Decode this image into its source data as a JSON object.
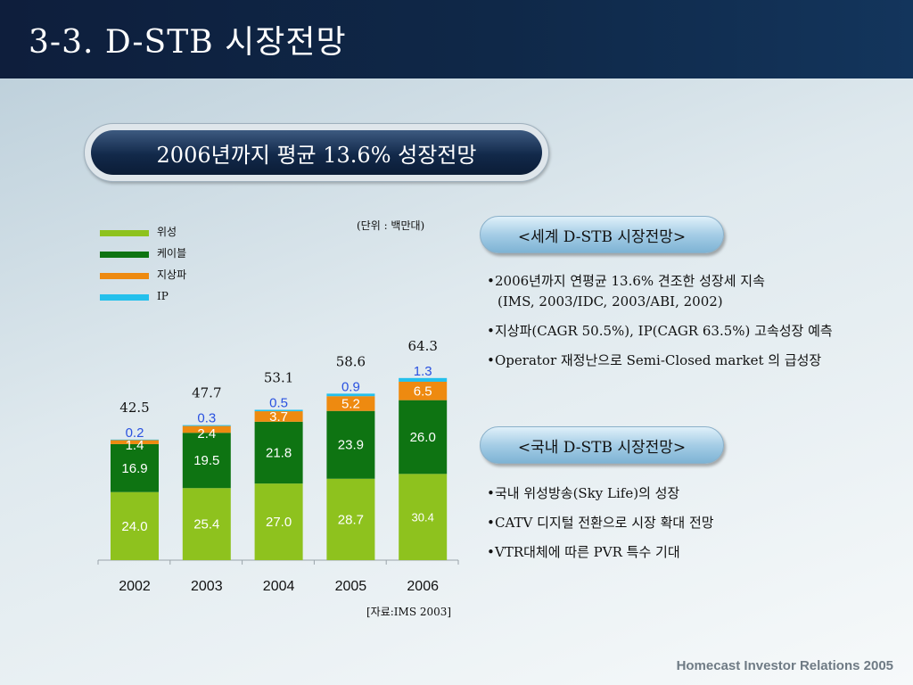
{
  "page_title": "3-3. D-STB 시장전망",
  "headline": "2006년까지 평균 13.6% 성장전망",
  "chart_data": {
    "type": "bar",
    "stacked": true,
    "unit_note": "(단위 : 백만대)",
    "source_note": "[자료:IMS 2003]",
    "categories": [
      "2002",
      "2003",
      "2004",
      "2005",
      "2006"
    ],
    "totals": [
      "42.5",
      "47.7",
      "53.1",
      "58.6",
      "64.3"
    ],
    "series": [
      {
        "name": "위성",
        "color": "#8ec21e",
        "label_color": "#ffffff",
        "values": [
          24.0,
          25.4,
          27.0,
          28.7,
          30.4
        ],
        "labels": [
          "24.0",
          "25.4",
          "27.0",
          "28.7",
          "30.4"
        ]
      },
      {
        "name": "케이블",
        "color": "#0e7412",
        "label_color": "#ffffff",
        "values": [
          16.9,
          19.5,
          21.8,
          23.9,
          26.0
        ],
        "labels": [
          "16.9",
          "19.5",
          "21.8",
          "23.9",
          "26.0"
        ]
      },
      {
        "name": "지상파",
        "color": "#ee8a10",
        "label_color": "#ffffff",
        "values": [
          1.4,
          2.4,
          3.7,
          5.2,
          6.5
        ],
        "labels": [
          "1.4",
          "2.4",
          "3.7",
          "5.2",
          "6.5"
        ]
      },
      {
        "name": "IP",
        "color": "#24c0ec",
        "label_color": "#2a52e0",
        "values": [
          0.2,
          0.3,
          0.5,
          0.9,
          1.3
        ],
        "labels": [
          "0.2",
          "0.3",
          "0.5",
          "0.9",
          "1.3"
        ]
      }
    ],
    "legend_position": "top-left",
    "grid": false
  },
  "world_section": {
    "title": "<세계 D-STB 시장전망>",
    "bullets": [
      "2006년까지 연평균 13.6% 견조한 성장세 지속",
      "(IMS, 2003/IDC, 2003/ABI, 2002)",
      "지상파(CAGR 50.5%), IP(CAGR 63.5%) 고속성장 예측",
      "Operator 재정난으로 Semi-Closed market 의 급성장"
    ]
  },
  "domestic_section": {
    "title": "<국내 D-STB 시장전망>",
    "bullets": [
      "국내 위성방송(Sky Life)의 성장",
      "CATV 디지털 전환으로 시장 확대 전망",
      "VTR대체에 따른 PVR 특수 기대"
    ]
  },
  "footer": "Homecast Investor Relations 2005",
  "bullet_symbol": "•"
}
